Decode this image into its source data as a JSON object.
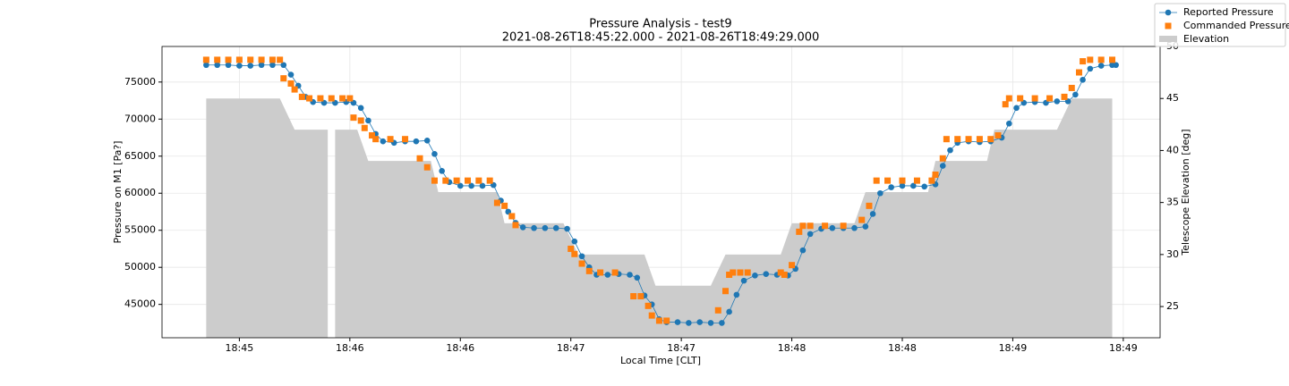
{
  "chart_data": {
    "type": "line",
    "title": "Pressure Analysis - test9",
    "subtitle": "2021-08-26T18:45:22.000 - 2021-08-26T18:49:29.000",
    "x_label": "Local Time [CLT]",
    "y_label": "Pressure on M1 [Pa?]",
    "y2_label": "Telescope Elevation [deg]",
    "xlim": [
      "18:45:09",
      "18:49:40"
    ],
    "xticks": [
      {
        "value": "18:45:30",
        "label": "18:45"
      },
      {
        "value": "18:46:00",
        "label": "18:46"
      },
      {
        "value": "18:46:30",
        "label": "18:46"
      },
      {
        "value": "18:47:00",
        "label": "18:47"
      },
      {
        "value": "18:47:30",
        "label": "18:47"
      },
      {
        "value": "18:48:00",
        "label": "18:48"
      },
      {
        "value": "18:48:30",
        "label": "18:48"
      },
      {
        "value": "18:49:00",
        "label": "18:49"
      },
      {
        "value": "18:49:30",
        "label": "18:49"
      }
    ],
    "ylim": [
      40500,
      79800
    ],
    "yticks": [
      45000,
      50000,
      55000,
      60000,
      65000,
      70000,
      75000
    ],
    "y2lim": [
      22,
      50
    ],
    "y2ticks": [
      25,
      30,
      35,
      40,
      45,
      50
    ],
    "grid": true,
    "legend": "outside upper right",
    "series": [
      {
        "name": "Elevation",
        "color": "#cccccc",
        "axis": "y2",
        "style": "area",
        "x": [
          "18:45:21",
          "18:45:41",
          "18:45:45",
          "18:45:54",
          "18:45:55",
          "18:45:56",
          "18:46:02",
          "18:46:05",
          "18:46:22",
          "18:46:24",
          "18:46:40",
          "18:46:42",
          "18:46:58",
          "18:47:02",
          "18:47:20",
          "18:47:23",
          "18:47:38",
          "18:47:42",
          "18:47:57",
          "18:48:00",
          "18:48:17",
          "18:48:20",
          "18:48:37",
          "18:48:39",
          "18:48:53",
          "18:48:55",
          "18:49:12",
          "18:49:16",
          "18:49:27"
        ],
        "values": [
          45,
          45,
          42,
          42,
          null,
          42,
          42,
          39,
          39,
          36,
          36,
          33,
          33,
          30,
          30,
          27,
          27,
          30,
          30,
          33,
          33,
          36,
          36,
          39,
          39,
          42,
          42,
          45,
          45
        ]
      },
      {
        "name": "Reported Pressure",
        "color": "#1f77b4",
        "axis": "y",
        "style": "line-marker",
        "marker": "circle",
        "x": [
          "18:45:21",
          "18:45:24",
          "18:45:27",
          "18:45:30",
          "18:45:33",
          "18:45:36",
          "18:45:39",
          "18:45:42",
          "18:45:44",
          "18:45:46",
          "18:45:48",
          "18:45:50",
          "18:45:53",
          "18:45:56",
          "18:45:59",
          "18:46:01",
          "18:46:03",
          "18:46:05",
          "18:46:07",
          "18:46:09",
          "18:46:12",
          "18:46:15",
          "18:46:18",
          "18:46:21",
          "18:46:23",
          "18:46:25",
          "18:46:27",
          "18:46:30",
          "18:46:33",
          "18:46:36",
          "18:46:39",
          "18:46:41",
          "18:46:43",
          "18:46:45",
          "18:46:47",
          "18:46:50",
          "18:46:53",
          "18:46:56",
          "18:46:59",
          "18:47:01",
          "18:47:03",
          "18:47:05",
          "18:47:07",
          "18:47:10",
          "18:47:13",
          "18:47:16",
          "18:47:18",
          "18:47:20",
          "18:47:22",
          "18:47:24",
          "18:47:26",
          "18:47:29",
          "18:47:32",
          "18:47:35",
          "18:47:38",
          "18:47:41",
          "18:47:43",
          "18:47:45",
          "18:47:47",
          "18:47:50",
          "18:47:53",
          "18:47:56",
          "18:47:59",
          "18:48:01",
          "18:48:03",
          "18:48:05",
          "18:48:08",
          "18:48:11",
          "18:48:14",
          "18:48:17",
          "18:48:20",
          "18:48:22",
          "18:48:24",
          "18:48:27",
          "18:48:30",
          "18:48:33",
          "18:48:36",
          "18:48:39",
          "18:48:41",
          "18:48:43",
          "18:48:45",
          "18:48:48",
          "18:48:51",
          "18:48:54",
          "18:48:57",
          "18:48:59",
          "18:49:01",
          "18:49:03",
          "18:49:06",
          "18:49:09",
          "18:49:12",
          "18:49:15",
          "18:49:17",
          "18:49:19",
          "18:49:21",
          "18:49:24",
          "18:49:27",
          "18:49:28"
        ],
        "values": [
          77300,
          77300,
          77300,
          77200,
          77200,
          77300,
          77300,
          77300,
          76000,
          74500,
          73000,
          72300,
          72200,
          72200,
          72300,
          72200,
          71500,
          69800,
          68000,
          67000,
          66800,
          67000,
          67000,
          67100,
          65300,
          63000,
          61500,
          61000,
          61000,
          61000,
          61100,
          59000,
          57500,
          56000,
          55400,
          55300,
          55300,
          55300,
          55200,
          53500,
          51500,
          50000,
          49000,
          49000,
          49100,
          49000,
          48600,
          46200,
          45000,
          43000,
          42600,
          42600,
          42500,
          42600,
          42500,
          42500,
          44000,
          46300,
          48200,
          48900,
          49100,
          49000,
          48900,
          49800,
          52300,
          54500,
          55200,
          55300,
          55300,
          55300,
          55500,
          57200,
          60000,
          60800,
          61000,
          61000,
          60900,
          61200,
          63700,
          65800,
          66800,
          67000,
          66900,
          67000,
          67500,
          69400,
          71500,
          72200,
          72300,
          72200,
          72400,
          72400,
          73300,
          75300,
          76800,
          77200,
          77300,
          77300
        ]
      },
      {
        "name": "Commanded Pressure",
        "color": "#ff7f0e",
        "axis": "y",
        "style": "marker",
        "marker": "square",
        "x": [
          "18:45:21",
          "18:45:24",
          "18:45:27",
          "18:45:30",
          "18:45:33",
          "18:45:36",
          "18:45:39",
          "18:45:41",
          "18:45:42",
          "18:45:44",
          "18:45:45",
          "18:45:47",
          "18:45:49",
          "18:45:52",
          "18:45:55",
          "18:45:58",
          "18:46:00",
          "18:46:01",
          "18:46:03",
          "18:46:04",
          "18:46:06",
          "18:46:07",
          "18:46:11",
          "18:46:15",
          "18:46:19",
          "18:46:21",
          "18:46:23",
          "18:46:26",
          "18:46:29",
          "18:46:32",
          "18:46:35",
          "18:46:38",
          "18:46:40",
          "18:46:42",
          "18:46:44",
          "18:46:45",
          "18:47:00",
          "18:47:01",
          "18:47:03",
          "18:47:05",
          "18:47:08",
          "18:47:12",
          "18:47:17",
          "18:47:19",
          "18:47:21",
          "18:47:22",
          "18:47:24",
          "18:47:26",
          "18:47:40",
          "18:47:42",
          "18:47:43",
          "18:47:44",
          "18:47:46",
          "18:47:48",
          "18:47:57",
          "18:47:58",
          "18:48:00",
          "18:48:02",
          "18:48:03",
          "18:48:05",
          "18:48:09",
          "18:48:14",
          "18:48:19",
          "18:48:21",
          "18:48:23",
          "18:48:26",
          "18:48:30",
          "18:48:34",
          "18:48:38",
          "18:48:39",
          "18:48:41",
          "18:48:42",
          "18:48:45",
          "18:48:48",
          "18:48:51",
          "18:48:54",
          "18:48:56",
          "18:48:58",
          "18:48:59",
          "18:49:02",
          "18:49:06",
          "18:49:10",
          "18:49:14",
          "18:49:16",
          "18:49:18",
          "18:49:19",
          "18:49:21",
          "18:49:24",
          "18:49:27"
        ],
        "values": [
          78000,
          78000,
          78000,
          78000,
          78000,
          78000,
          78000,
          78000,
          75500,
          74800,
          74000,
          73000,
          72800,
          72800,
          72800,
          72800,
          72800,
          70200,
          69800,
          68800,
          67800,
          67300,
          67300,
          67300,
          64700,
          63500,
          61700,
          61700,
          61700,
          61700,
          61700,
          61700,
          58700,
          58300,
          56900,
          55700,
          52500,
          51800,
          50500,
          49500,
          49300,
          49300,
          46100,
          46100,
          44800,
          43500,
          42800,
          42800,
          44200,
          46800,
          49000,
          49300,
          49300,
          49300,
          49300,
          49000,
          50300,
          54800,
          55600,
          55600,
          55600,
          55600,
          56400,
          58300,
          61700,
          61700,
          61700,
          61700,
          61700,
          62500,
          64700,
          67300,
          67300,
          67300,
          67300,
          67300,
          67800,
          72000,
          72800,
          72800,
          72800,
          72800,
          73000,
          74200,
          76300,
          77800,
          78000,
          78000,
          78000
        ]
      }
    ]
  }
}
